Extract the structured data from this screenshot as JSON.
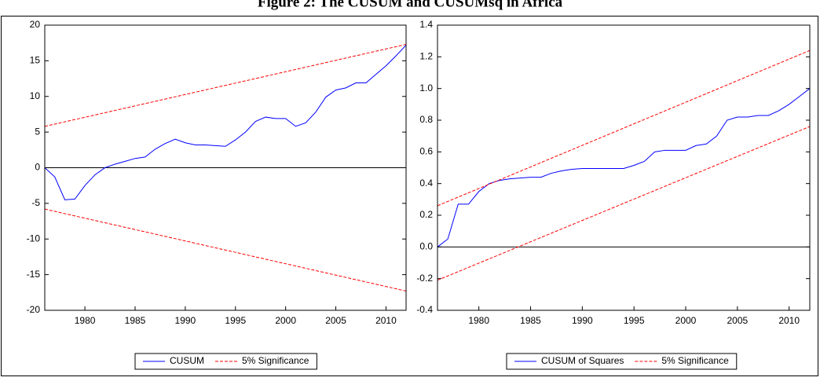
{
  "figure_title": "Figure 2: The CUSUM and CUSUMsq in Africa",
  "chart_data": [
    {
      "type": "line",
      "x": [
        1976,
        1977,
        1978,
        1979,
        1980,
        1981,
        1982,
        1983,
        1984,
        1985,
        1986,
        1987,
        1988,
        1989,
        1990,
        1991,
        1992,
        1993,
        1994,
        1995,
        1996,
        1997,
        1998,
        1999,
        2000,
        2001,
        2002,
        2003,
        2004,
        2005,
        2006,
        2007,
        2008,
        2009,
        2010,
        2011,
        2012
      ],
      "series": [
        {
          "name": "CUSUM",
          "color": "#0000ff",
          "values": [
            0,
            -1.3,
            -4.5,
            -4.4,
            -2.5,
            -1.0,
            0.0,
            0.5,
            0.9,
            1.3,
            1.5,
            2.6,
            3.4,
            4.0,
            3.5,
            3.2,
            3.2,
            3.1,
            3.0,
            3.9,
            5.0,
            6.5,
            7.1,
            6.9,
            6.9,
            5.8,
            6.3,
            7.8,
            9.9,
            10.9,
            11.2,
            11.9,
            11.9,
            13.1,
            14.3,
            15.7,
            17.2
          ]
        },
        {
          "name": "5% Significance",
          "color": "#ff0000",
          "dashed": true,
          "x": [
            1976,
            2012
          ],
          "values": [
            5.8,
            17.3
          ],
          "lower": [
            -5.8,
            -17.3
          ]
        }
      ],
      "xlim": [
        1976,
        2012
      ],
      "xticks": [
        1980,
        1985,
        1990,
        1995,
        2000,
        2005,
        2010
      ],
      "ylim": [
        -20,
        20
      ],
      "yticks": [
        -20,
        -15,
        -10,
        -5,
        0,
        5,
        10,
        15,
        20
      ],
      "zero_line": true
    },
    {
      "type": "line",
      "x": [
        1976,
        1977,
        1978,
        1979,
        1980,
        1981,
        1982,
        1983,
        1984,
        1985,
        1986,
        1987,
        1988,
        1989,
        1990,
        1991,
        1992,
        1993,
        1994,
        1995,
        1996,
        1997,
        1998,
        1999,
        2000,
        2001,
        2002,
        2003,
        2004,
        2005,
        2006,
        2007,
        2008,
        2009,
        2010,
        2011,
        2012
      ],
      "series": [
        {
          "name": "CUSUM of Squares",
          "color": "#0000ff",
          "values": [
            0,
            0.05,
            0.27,
            0.27,
            0.35,
            0.4,
            0.42,
            0.43,
            0.435,
            0.44,
            0.44,
            0.465,
            0.48,
            0.49,
            0.495,
            0.495,
            0.495,
            0.495,
            0.495,
            0.515,
            0.54,
            0.6,
            0.61,
            0.61,
            0.61,
            0.64,
            0.65,
            0.7,
            0.8,
            0.82,
            0.82,
            0.83,
            0.83,
            0.86,
            0.9,
            0.95,
            1.0
          ]
        },
        {
          "name": "5% Significance",
          "color": "#ff0000",
          "dashed": true,
          "x": [
            1976,
            2012
          ],
          "values": [
            0.26,
            1.24
          ],
          "lower": [
            -0.21,
            0.76
          ]
        }
      ],
      "xlim": [
        1976,
        2012
      ],
      "xticks": [
        1980,
        1985,
        1990,
        1995,
        2000,
        2005,
        2010
      ],
      "ylim": [
        -0.4,
        1.4
      ],
      "yticks": [
        -0.4,
        -0.2,
        {
          "value": 0,
          "label": "0.0"
        },
        0.2,
        0.4,
        0.6,
        0.8,
        {
          "value": 1,
          "label": "1.0"
        },
        1.2,
        1.4
      ],
      "zero_line": true
    }
  ]
}
